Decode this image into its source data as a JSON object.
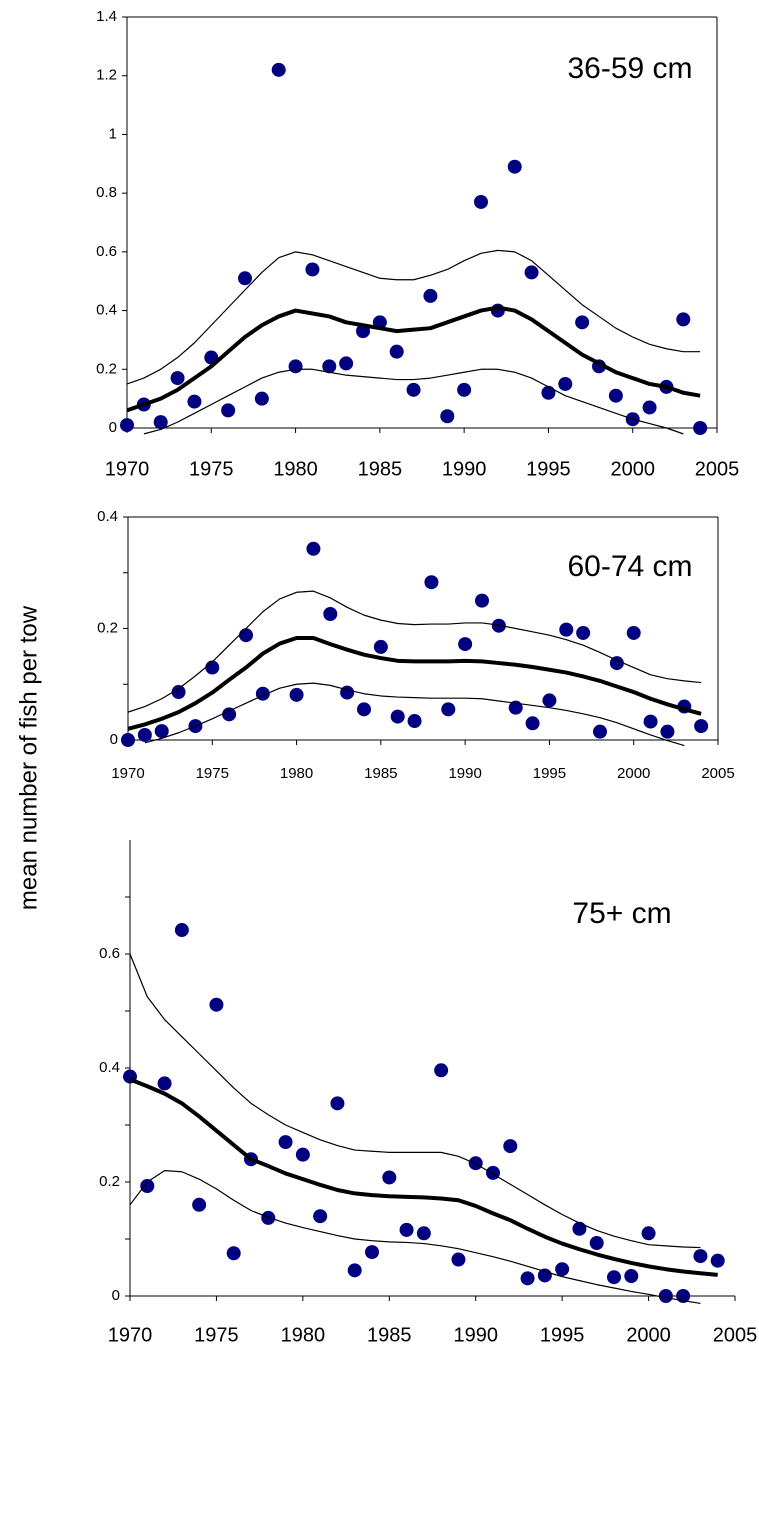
{
  "chart_data": [
    {
      "type": "scatter",
      "annotation": "36-59 cm",
      "x": [
        1970,
        1971,
        1972,
        1973,
        1974,
        1975,
        1976,
        1977,
        1978,
        1979,
        1980,
        1981,
        1982,
        1983,
        1984,
        1985,
        1986,
        1987,
        1988,
        1989,
        1990,
        1991,
        1992,
        1993,
        1994,
        1995,
        1996,
        1997,
        1998,
        1999,
        2000,
        2001,
        2002,
        2003,
        2004
      ],
      "xlim": [
        1970,
        2005
      ],
      "xticks": [
        1970,
        1975,
        1980,
        1985,
        1990,
        1995,
        2000,
        2005
      ],
      "ylim": [
        0,
        1.4
      ],
      "yticks": [
        0,
        0.2,
        0.4,
        0.6,
        0.8,
        1,
        1.2,
        1.4
      ],
      "frame": true,
      "series": [
        {
          "type": "scatter",
          "color": "#000080",
          "values": [
            0.01,
            0.08,
            0.02,
            0.17,
            0.09,
            0.24,
            0.06,
            0.51,
            0.1,
            1.22,
            0.21,
            0.54,
            0.21,
            0.22,
            0.33,
            0.36,
            0.26,
            0.13,
            0.45,
            0.04,
            0.13,
            0.77,
            0.4,
            0.89,
            0.53,
            0.12,
            0.15,
            0.36,
            0.21,
            0.11,
            0.03,
            0.07,
            0.14,
            0.37,
            0
          ]
        },
        {
          "type": "line",
          "color": "#000000",
          "width": 4,
          "values": [
            0.06,
            0.08,
            0.1,
            0.13,
            0.17,
            0.21,
            0.26,
            0.31,
            0.35,
            0.38,
            0.4,
            0.39,
            0.38,
            0.36,
            0.35,
            0.34,
            0.33,
            0.335,
            0.34,
            0.36,
            0.38,
            0.4,
            0.41,
            0.4,
            0.37,
            0.33,
            0.29,
            0.25,
            0.22,
            0.19,
            0.17,
            0.15,
            0.14,
            0.12,
            0.11
          ]
        },
        {
          "type": "line",
          "color": "#000000",
          "width": 1.2,
          "values": [
            0.15,
            0.17,
            0.2,
            0.24,
            0.29,
            0.35,
            0.41,
            0.47,
            0.53,
            0.58,
            0.6,
            0.59,
            0.57,
            0.55,
            0.53,
            0.51,
            0.505,
            0.505,
            0.52,
            0.54,
            0.57,
            0.595,
            0.605,
            0.6,
            0.57,
            0.52,
            0.47,
            0.42,
            0.38,
            0.34,
            0.31,
            0.285,
            0.27,
            0.26,
            0.26
          ]
        },
        {
          "type": "line",
          "color": "#000000",
          "width": 1.2,
          "values": [
            null,
            -0.02,
            -0.005,
            0.02,
            0.05,
            0.08,
            0.11,
            0.14,
            0.17,
            0.19,
            0.2,
            0.2,
            0.19,
            0.18,
            0.175,
            0.17,
            0.165,
            0.165,
            0.17,
            0.18,
            0.19,
            0.2,
            0.2,
            0.19,
            0.17,
            0.14,
            0.11,
            0.09,
            0.07,
            0.05,
            0.03,
            0.015,
            0,
            -0.02,
            null
          ]
        }
      ]
    },
    {
      "type": "scatter",
      "annotation": "60-74 cm",
      "ylabel": "mean number of fish per tow",
      "x": [
        1970,
        1971,
        1972,
        1973,
        1974,
        1975,
        1976,
        1977,
        1978,
        1979,
        1980,
        1981,
        1982,
        1983,
        1984,
        1985,
        1986,
        1987,
        1988,
        1989,
        1990,
        1991,
        1992,
        1993,
        1994,
        1995,
        1996,
        1997,
        1998,
        1999,
        2000,
        2001,
        2002,
        2003,
        2004
      ],
      "xlim": [
        1970,
        2005
      ],
      "xticks": [
        1970,
        1975,
        1980,
        1985,
        1990,
        1995,
        2000,
        2005
      ],
      "ylim": [
        0,
        0.4
      ],
      "yticks": [
        0,
        0.2,
        0.4
      ],
      "yminorticks": [
        0.1,
        0.3
      ],
      "frame": true,
      "series": [
        {
          "type": "scatter",
          "color": "#000080",
          "values": [
            0,
            0.009,
            0.016,
            0.086,
            0.025,
            0.13,
            0.046,
            0.188,
            0.083,
            null,
            0.081,
            0.343,
            0.226,
            0.085,
            0.055,
            0.167,
            0.042,
            0.034,
            0.283,
            0.055,
            0.172,
            0.25,
            0.205,
            0.058,
            0.03,
            0.071,
            0.198,
            0.192,
            0.015,
            0.138,
            0.192,
            0.033,
            0.015,
            0.06,
            0.025
          ]
        },
        {
          "type": "line",
          "color": "#000000",
          "width": 4,
          "values": [
            0.02,
            0.028,
            0.038,
            0.05,
            0.066,
            0.085,
            0.108,
            0.13,
            0.155,
            0.173,
            0.183,
            0.183,
            0.172,
            0.162,
            0.153,
            0.147,
            0.142,
            0.141,
            0.141,
            0.141,
            0.142,
            0.141,
            0.138,
            0.135,
            0.131,
            0.126,
            0.121,
            0.114,
            0.106,
            0.096,
            0.086,
            0.074,
            0.064,
            0.055,
            0.047
          ]
        },
        {
          "type": "line",
          "color": "#000000",
          "width": 1.2,
          "values": [
            0.05,
            0.06,
            0.074,
            0.092,
            0.115,
            0.14,
            0.17,
            0.2,
            0.23,
            0.253,
            0.265,
            0.267,
            0.255,
            0.238,
            0.224,
            0.215,
            0.209,
            0.207,
            0.208,
            0.208,
            0.21,
            0.21,
            0.206,
            0.2,
            0.194,
            0.188,
            0.18,
            0.17,
            0.157,
            0.143,
            0.13,
            0.117,
            0.11,
            0.106,
            0.103
          ]
        },
        {
          "type": "line",
          "color": "#000000",
          "width": 1.2,
          "values": [
            null,
            -0.005,
            0.003,
            0.013,
            0.025,
            0.038,
            0.052,
            0.066,
            0.08,
            0.093,
            0.1,
            0.102,
            0.098,
            0.09,
            0.083,
            0.079,
            0.077,
            0.076,
            0.075,
            0.075,
            0.075,
            0.074,
            0.07,
            0.066,
            0.062,
            0.058,
            0.053,
            0.047,
            0.04,
            0.031,
            0.02,
            0.009,
            -0.001,
            -0.01,
            null
          ]
        }
      ]
    },
    {
      "type": "scatter",
      "annotation": "75+ cm",
      "x": [
        1970,
        1971,
        1972,
        1973,
        1974,
        1975,
        1976,
        1977,
        1978,
        1979,
        1980,
        1981,
        1982,
        1983,
        1984,
        1985,
        1986,
        1987,
        1988,
        1989,
        1990,
        1991,
        1992,
        1993,
        1994,
        1995,
        1996,
        1997,
        1998,
        1999,
        2000,
        2001,
        2002,
        2003,
        2004
      ],
      "xlim": [
        1970,
        2005
      ],
      "xticks": [
        1970,
        1975,
        1980,
        1985,
        1990,
        1995,
        2000,
        2005
      ],
      "ylim": [
        0,
        0.8
      ],
      "yticks": [
        0,
        0.2,
        0.4,
        0.6
      ],
      "yminorticks": [
        0.1,
        0.3,
        0.5,
        0.7
      ],
      "frame": false,
      "series": [
        {
          "type": "scatter",
          "color": "#000080",
          "values": [
            0.385,
            0.193,
            0.373,
            0.642,
            0.16,
            0.511,
            0.075,
            0.24,
            0.137,
            0.27,
            0.248,
            0.14,
            0.338,
            0.045,
            0.077,
            0.208,
            0.116,
            0.11,
            0.396,
            0.064,
            0.233,
            0.216,
            0.263,
            0.031,
            0.036,
            0.047,
            0.118,
            0.093,
            0.033,
            0.035,
            0.11,
            0,
            0,
            0.07,
            0.062
          ]
        },
        {
          "type": "line",
          "color": "#000000",
          "width": 4,
          "values": [
            0.38,
            0.368,
            0.355,
            0.338,
            0.315,
            0.29,
            0.265,
            0.24,
            0.228,
            0.215,
            0.205,
            0.195,
            0.186,
            0.18,
            0.177,
            0.175,
            0.174,
            0.173,
            0.171,
            0.168,
            0.158,
            0.145,
            0.133,
            0.118,
            0.104,
            0.092,
            0.082,
            0.073,
            0.065,
            0.058,
            0.052,
            0.047,
            0.043,
            0.04,
            0.037
          ]
        },
        {
          "type": "line",
          "color": "#000000",
          "width": 1.2,
          "values": [
            0.6,
            0.525,
            0.485,
            0.455,
            0.425,
            0.395,
            0.365,
            0.338,
            0.318,
            0.3,
            0.287,
            0.274,
            0.264,
            0.256,
            0.254,
            0.252,
            0.252,
            0.252,
            0.252,
            0.245,
            0.232,
            0.214,
            0.196,
            0.178,
            0.16,
            0.143,
            0.128,
            0.115,
            0.105,
            0.097,
            0.09,
            0.088,
            0.086,
            0.085,
            null
          ]
        },
        {
          "type": "line",
          "color": "#000000",
          "width": 1.2,
          "values": [
            0.16,
            0.2,
            0.22,
            0.218,
            0.205,
            0.188,
            0.168,
            0.15,
            0.138,
            0.128,
            0.12,
            0.113,
            0.106,
            0.1,
            0.097,
            0.095,
            0.094,
            0.092,
            0.088,
            0.083,
            0.076,
            0.069,
            0.061,
            0.052,
            0.043,
            0.034,
            0.027,
            0.02,
            0.014,
            0.008,
            0.003,
            -0.003,
            -0.008,
            -0.013,
            null
          ]
        }
      ]
    }
  ]
}
